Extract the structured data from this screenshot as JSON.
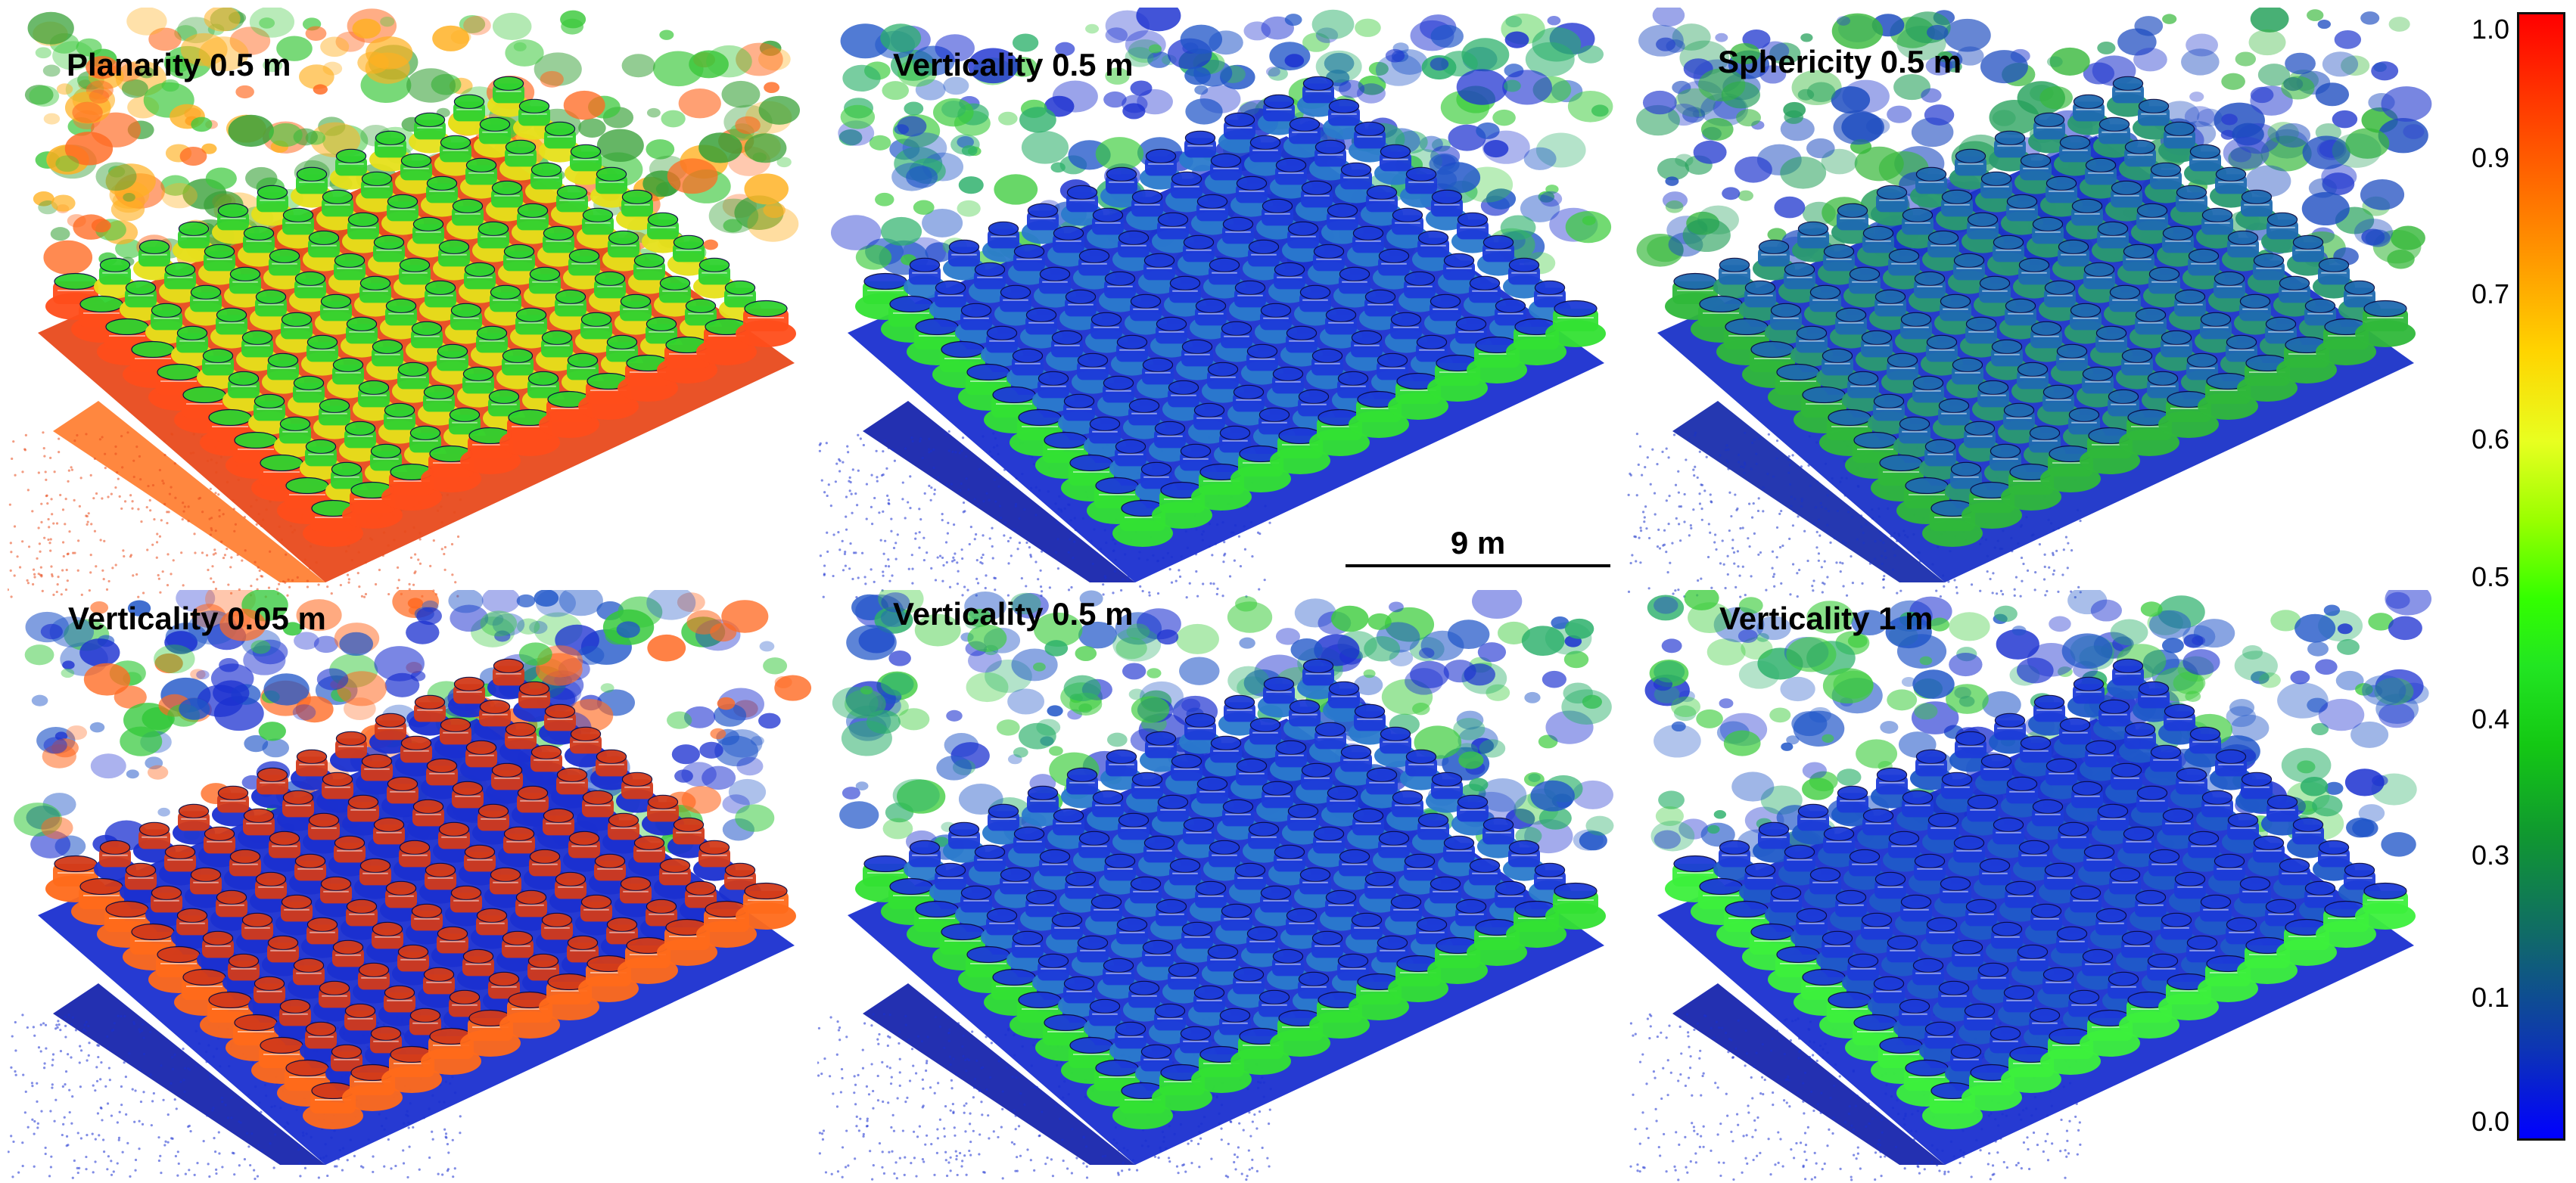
{
  "panels": [
    {
      "title": "Planarity 0.5 m",
      "palette": "planarity"
    },
    {
      "title": "Verticality 0.5 m",
      "palette": "vertical"
    },
    {
      "title": "Sphericity 0.5 m",
      "palette": "sphericity"
    },
    {
      "title": "Verticality 0.05 m",
      "palette": "vertical-fine"
    },
    {
      "title": "Verticality 0.5 m",
      "palette": "vertical"
    },
    {
      "title": "Verticality 1 m",
      "palette": "vertical-coarse"
    }
  ],
  "scale_bar": {
    "label": "9 m"
  },
  "colorbar": {
    "ticks": [
      "1.0",
      "0.9",
      "0.7",
      "0.6",
      "0.5",
      "0.4",
      "0.3",
      "0.1",
      "0.0"
    ],
    "colors": [
      "#ff0000",
      "#ff8c00",
      "#ffd400",
      "#33ff00",
      "#14c814",
      "#106a68",
      "#0000ff"
    ]
  }
}
